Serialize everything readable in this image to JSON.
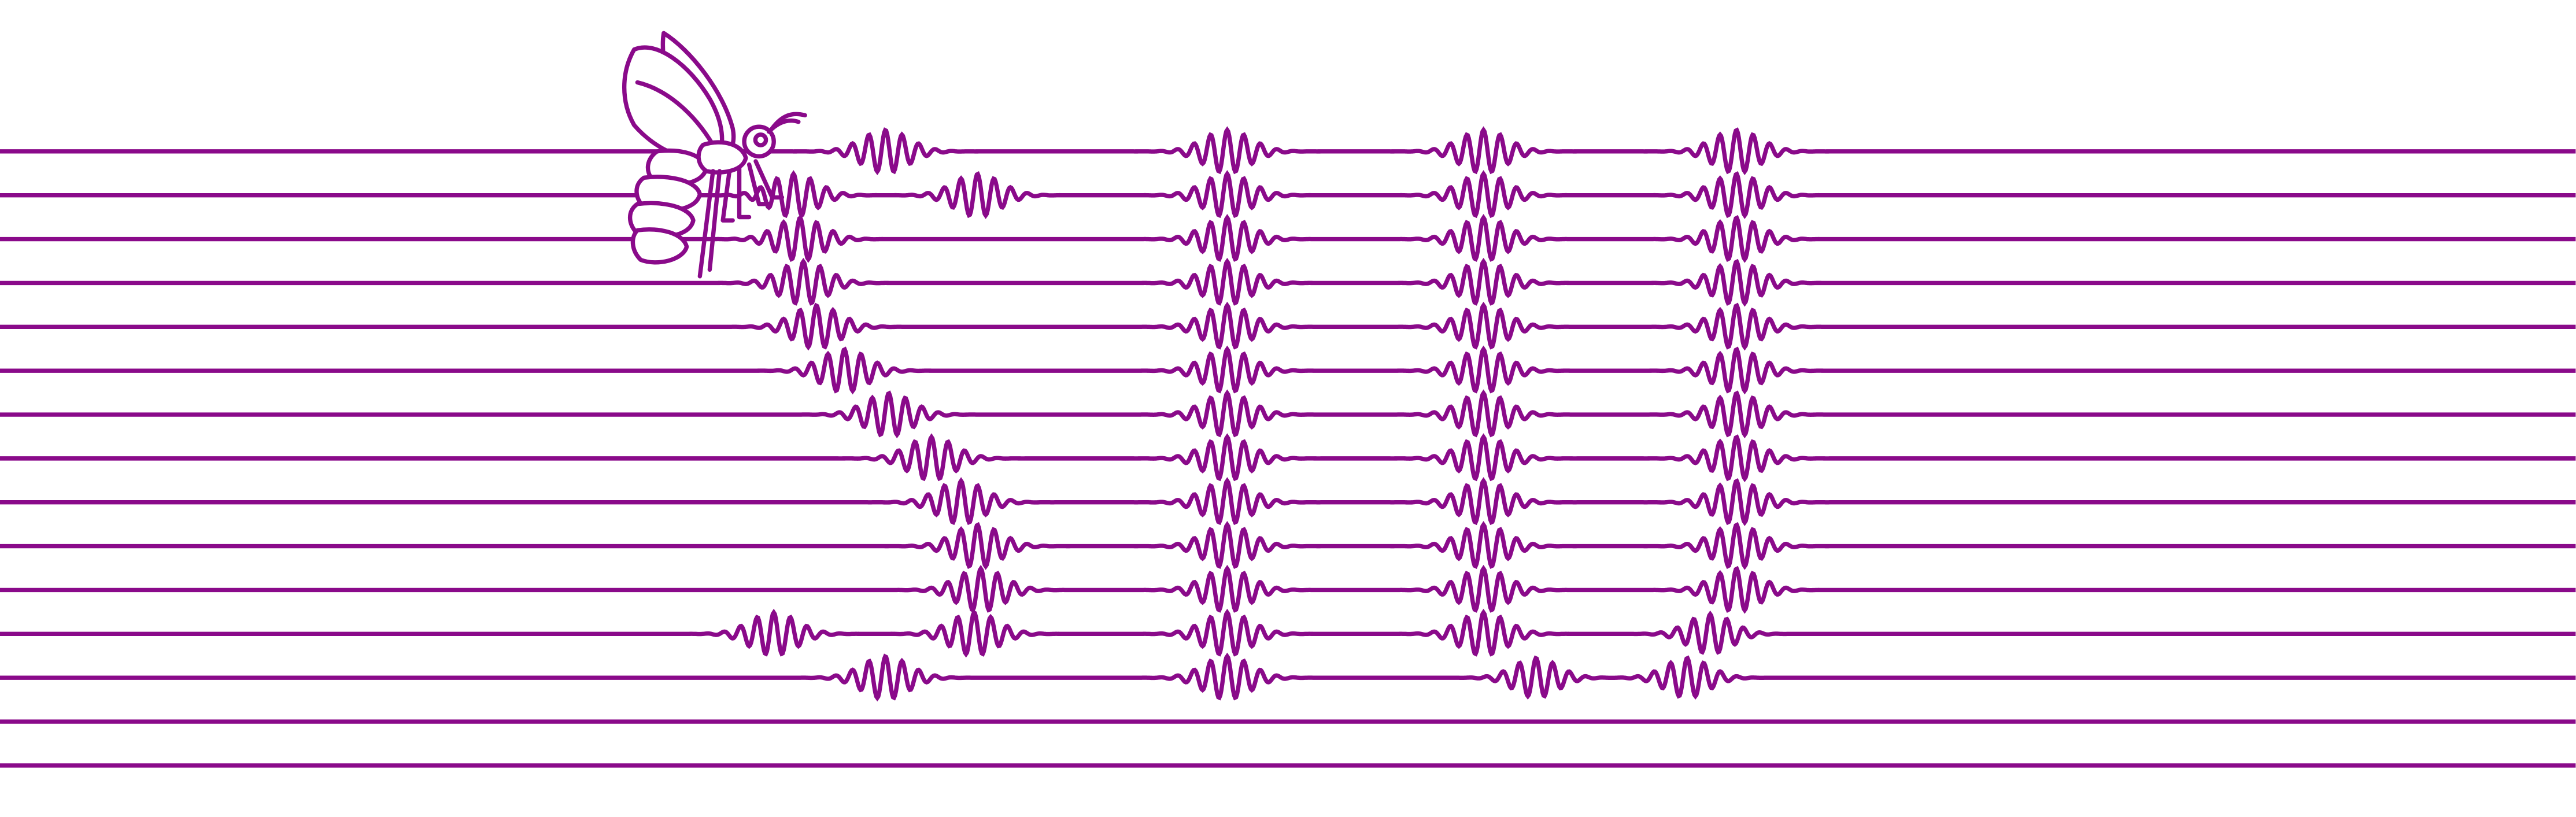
{
  "colors": {
    "ink": "#8a0a8a",
    "background": "#ffffff"
  },
  "icon": "bee-icon",
  "wave_text": "SIIU",
  "wave_letters": [
    "S",
    "I",
    "I",
    "U"
  ]
}
